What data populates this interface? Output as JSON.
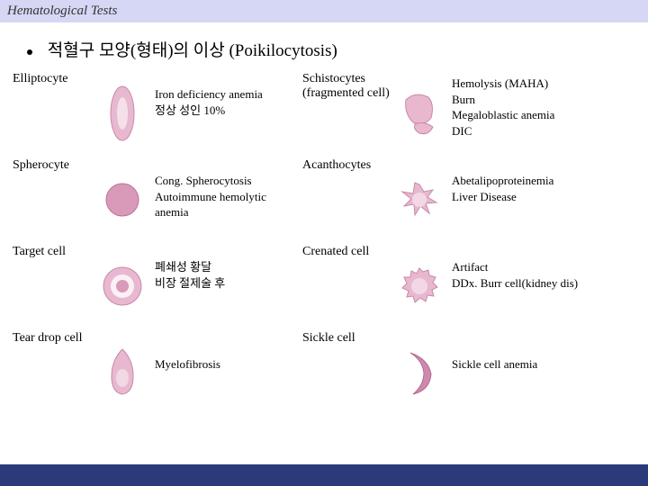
{
  "header": {
    "title": "Hematological Tests"
  },
  "main": {
    "bullet_title": "적혈구 모양(형태)의 이상 (Poikilocytosis)"
  },
  "rows": [
    {
      "left_name": "Elliptocyte",
      "left_desc": "Iron deficiency anemia\n정상 성인 10%",
      "right_name": "Schistocytes\n(fragmented cell)",
      "right_desc": "Hemolysis (MAHA)\nBurn\nMegaloblastic anemia\nDIC"
    },
    {
      "left_name": "Spherocyte",
      "left_desc": "Cong. Spherocytosis\nAutoimmune hemolytic\n anemia",
      "right_name": "Acanthocytes",
      "right_desc": "Abetalipoproteinemia\nLiver Disease"
    },
    {
      "left_name": "Target cell",
      "left_desc": "폐쇄성 황달\n비장 절제술 후",
      "right_name": "Crenated cell",
      "right_desc": "Artifact\nDDx. Burr cell(kidney dis)"
    },
    {
      "left_name": "Tear drop cell",
      "left_desc": "Myelofibrosis",
      "right_name": "Sickle cell",
      "right_desc": "Sickle cell anemia"
    }
  ],
  "style": {
    "header_bg": "#d6d6f5",
    "footer_bg": "#2a3a7a",
    "cell_fill": "#e8b8d0",
    "cell_stroke": "#c888aa",
    "cell_core": "#d6a0bc",
    "font_title": 19,
    "font_name": 14,
    "font_desc": 13
  }
}
